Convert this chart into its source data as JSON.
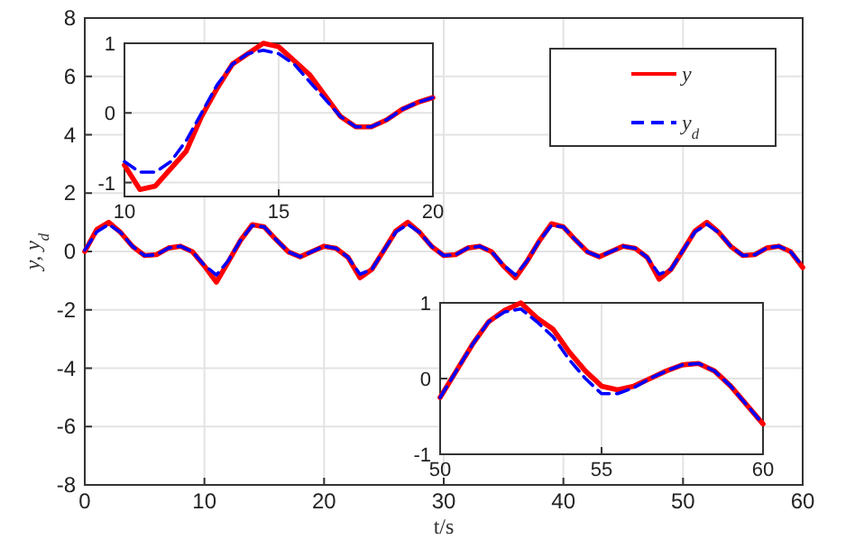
{
  "chart_data": [
    {
      "type": "line",
      "xlabel": "t/s",
      "ylabel": "y, y$_{d}$",
      "x": [
        0,
        1,
        2,
        3,
        4,
        5,
        6,
        7,
        8,
        9,
        10,
        11,
        12,
        13,
        14,
        15,
        16,
        17,
        18,
        19,
        20,
        21,
        22,
        23,
        24,
        25,
        26,
        27,
        28,
        29,
        30,
        31,
        32,
        33,
        34,
        35,
        36,
        37,
        38,
        39,
        40,
        41,
        42,
        43,
        44,
        45,
        46,
        47,
        48,
        49,
        50,
        51,
        52,
        53,
        54,
        55,
        56,
        57,
        58,
        59,
        60
      ],
      "series": [
        {
          "name": "y",
          "color": "#ff0000",
          "line_style": "solid",
          "values": [
            0,
            0.75,
            1.0,
            0.65,
            0.17,
            -0.14,
            -0.11,
            0.12,
            0.18,
            -0.01,
            -0.5,
            -1.05,
            -0.35,
            0.37,
            0.92,
            0.84,
            0.4,
            -0.01,
            -0.18,
            0,
            0.18,
            0.11,
            -0.2,
            -0.9,
            -0.61,
            0.04,
            0.7,
            1.0,
            0.65,
            0.17,
            -0.14,
            -0.11,
            0.12,
            0.18,
            -0.01,
            -0.5,
            -0.9,
            -0.31,
            0.37,
            0.95,
            0.84,
            0.4,
            -0.01,
            -0.18,
            0,
            0.18,
            0.11,
            -0.2,
            -0.95,
            -0.61,
            0.04,
            0.7,
            1.0,
            0.65,
            0.17,
            -0.14,
            -0.11,
            0.12,
            0.18,
            -0.01,
            -0.55
          ]
        },
        {
          "name": "y$_{d}$",
          "color": "#0000ff",
          "line_style": "dashed",
          "values": [
            0.05,
            0.67,
            0.93,
            0.65,
            0.17,
            -0.14,
            -0.11,
            0.12,
            0.18,
            -0.01,
            -0.47,
            -0.81,
            -0.31,
            0.37,
            0.89,
            0.84,
            0.4,
            -0.01,
            -0.18,
            0,
            0.18,
            0.11,
            -0.2,
            -0.78,
            -0.61,
            0.04,
            0.67,
            0.93,
            0.65,
            0.17,
            -0.14,
            -0.11,
            0.12,
            0.18,
            -0.01,
            -0.47,
            -0.81,
            -0.31,
            0.37,
            0.89,
            0.84,
            0.4,
            -0.01,
            -0.18,
            0,
            0.18,
            0.11,
            -0.2,
            -0.78,
            -0.61,
            0.04,
            0.67,
            0.93,
            0.65,
            0.17,
            -0.14,
            -0.11,
            0.12,
            0.18,
            -0.01,
            -0.5
          ]
        }
      ],
      "xlim": [
        0,
        60
      ],
      "ylim": [
        -8,
        8
      ],
      "xticks": [
        0,
        10,
        20,
        30,
        40,
        50,
        60
      ],
      "yticks": [
        -8,
        -6,
        -4,
        -2,
        0,
        2,
        4,
        6,
        8
      ],
      "grid": true,
      "legend": "top right"
    },
    {
      "type": "line",
      "x": [
        10,
        10.5,
        11,
        11.5,
        12,
        12.5,
        13,
        13.5,
        14,
        14.5,
        15,
        15.5,
        16,
        16.5,
        17,
        17.5,
        18,
        18.5,
        19,
        19.5,
        20
      ],
      "series": [
        {
          "color": "#ff0000",
          "line_style": "solid",
          "values": [
            -0.75,
            -1.1,
            -1.05,
            -0.8,
            -0.55,
            -0.05,
            0.35,
            0.7,
            0.85,
            1.0,
            0.95,
            0.75,
            0.55,
            0.25,
            -0.05,
            -0.2,
            -0.2,
            -0.1,
            0.05,
            0.15,
            0.22
          ]
        },
        {
          "color": "#0000ff",
          "line_style": "dashed",
          "values": [
            -0.7,
            -0.85,
            -0.85,
            -0.7,
            -0.4,
            0,
            0.4,
            0.7,
            0.85,
            0.9,
            0.85,
            0.7,
            0.45,
            0.2,
            -0.05,
            -0.2,
            -0.2,
            -0.1,
            0.05,
            0.15,
            0.22
          ]
        }
      ],
      "xlim": [
        10,
        20
      ],
      "ylim": [
        -1.2,
        1
      ],
      "xticks": [
        10,
        15,
        20
      ],
      "yticks": [
        -1,
        0,
        1
      ],
      "grid": true
    },
    {
      "type": "line",
      "x": [
        50,
        50.5,
        51,
        51.5,
        52,
        52.5,
        53,
        53.5,
        54,
        54.5,
        55,
        55.5,
        56,
        56.5,
        57,
        57.5,
        58,
        58.5,
        59,
        59.5,
        60
      ],
      "series": [
        {
          "color": "#ff0000",
          "line_style": "solid",
          "values": [
            -0.25,
            0.1,
            0.45,
            0.75,
            0.9,
            1.0,
            0.8,
            0.65,
            0.35,
            0.1,
            -0.1,
            -0.15,
            -0.1,
            0,
            0.1,
            0.18,
            0.2,
            0.1,
            -0.1,
            -0.35,
            -0.6
          ]
        },
        {
          "color": "#0000ff",
          "line_style": "dashed",
          "values": [
            -0.25,
            0.1,
            0.45,
            0.75,
            0.88,
            0.92,
            0.75,
            0.55,
            0.25,
            0,
            -0.2,
            -0.2,
            -0.12,
            0,
            0.1,
            0.18,
            0.2,
            0.1,
            -0.1,
            -0.35,
            -0.6
          ]
        }
      ],
      "xlim": [
        50,
        60
      ],
      "ylim": [
        -1,
        1
      ],
      "xticks": [
        50,
        55,
        60
      ],
      "yticks": [
        -1,
        0,
        1
      ],
      "grid": true
    }
  ]
}
